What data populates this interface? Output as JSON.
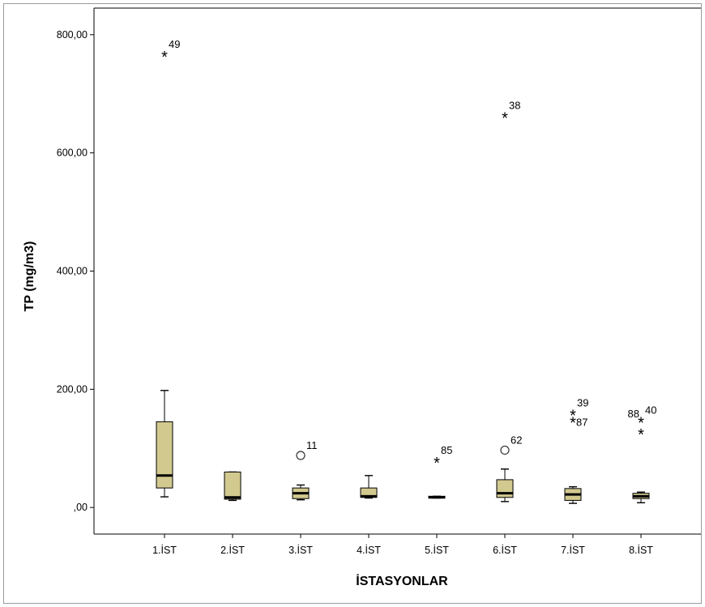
{
  "chart_data": {
    "type": "boxplot",
    "xlabel": "İSTASYONLAR",
    "ylabel": "TP (mg/m3)",
    "ylim": [
      -45,
      845
    ],
    "yticks": [
      0,
      200,
      400,
      600,
      800
    ],
    "ytick_labels": [
      ",00",
      "200,00",
      "400,00",
      "600,00",
      "800,00"
    ],
    "categories": [
      "1.İST",
      "2.İST",
      "3.İST",
      "4.İST",
      "5.İST",
      "6.İST",
      "7.İST",
      "8.İST"
    ],
    "box_color": "#d2c98f",
    "boxes": [
      {
        "station": "1.İST",
        "min": 18,
        "q1": 33,
        "median": 54,
        "q3": 145,
        "max": 198,
        "outliers": [
          {
            "value": 767,
            "marker": "star",
            "label": "49",
            "label_pos": "right"
          }
        ]
      },
      {
        "station": "2.İST",
        "min": 12,
        "q1": 14,
        "median": 17,
        "q3": 60,
        "max": 60,
        "outliers": []
      },
      {
        "station": "3.İST",
        "min": 13,
        "q1": 15,
        "median": 24,
        "q3": 33,
        "max": 38,
        "outliers": [
          {
            "value": 88,
            "marker": "circle",
            "label": "11",
            "label_pos": "right"
          }
        ]
      },
      {
        "station": "4.İST",
        "min": 16,
        "q1": 17,
        "median": 19,
        "q3": 33,
        "max": 54,
        "outliers": []
      },
      {
        "station": "5.İST",
        "min": 16,
        "q1": 16,
        "median": 17,
        "q3": 19,
        "max": 19,
        "outliers": [
          {
            "value": 80,
            "marker": "star",
            "label": "85",
            "label_pos": "right"
          }
        ]
      },
      {
        "station": "6.İST",
        "min": 10,
        "q1": 17,
        "median": 24,
        "q3": 47,
        "max": 65,
        "outliers": [
          {
            "value": 663,
            "marker": "star",
            "label": "38",
            "label_pos": "right"
          },
          {
            "value": 97,
            "marker": "circle",
            "label": "62",
            "label_pos": "right"
          }
        ]
      },
      {
        "station": "7.İST",
        "min": 7,
        "q1": 12,
        "median": 22,
        "q3": 32,
        "max": 35,
        "outliers": [
          {
            "value": 160,
            "marker": "star",
            "label": "39",
            "label_pos": "right"
          },
          {
            "value": 148,
            "marker": "star",
            "label": "87",
            "label_pos": "right_low"
          }
        ]
      },
      {
        "station": "8.İST",
        "min": 8,
        "q1": 15,
        "median": 19,
        "q3": 24,
        "max": 26,
        "outliers": [
          {
            "value": 148,
            "marker": "star",
            "label": "40",
            "label_pos": "right"
          },
          {
            "value": 128,
            "marker": "star",
            "label": "88",
            "label_pos": "upper_left"
          }
        ]
      }
    ]
  }
}
